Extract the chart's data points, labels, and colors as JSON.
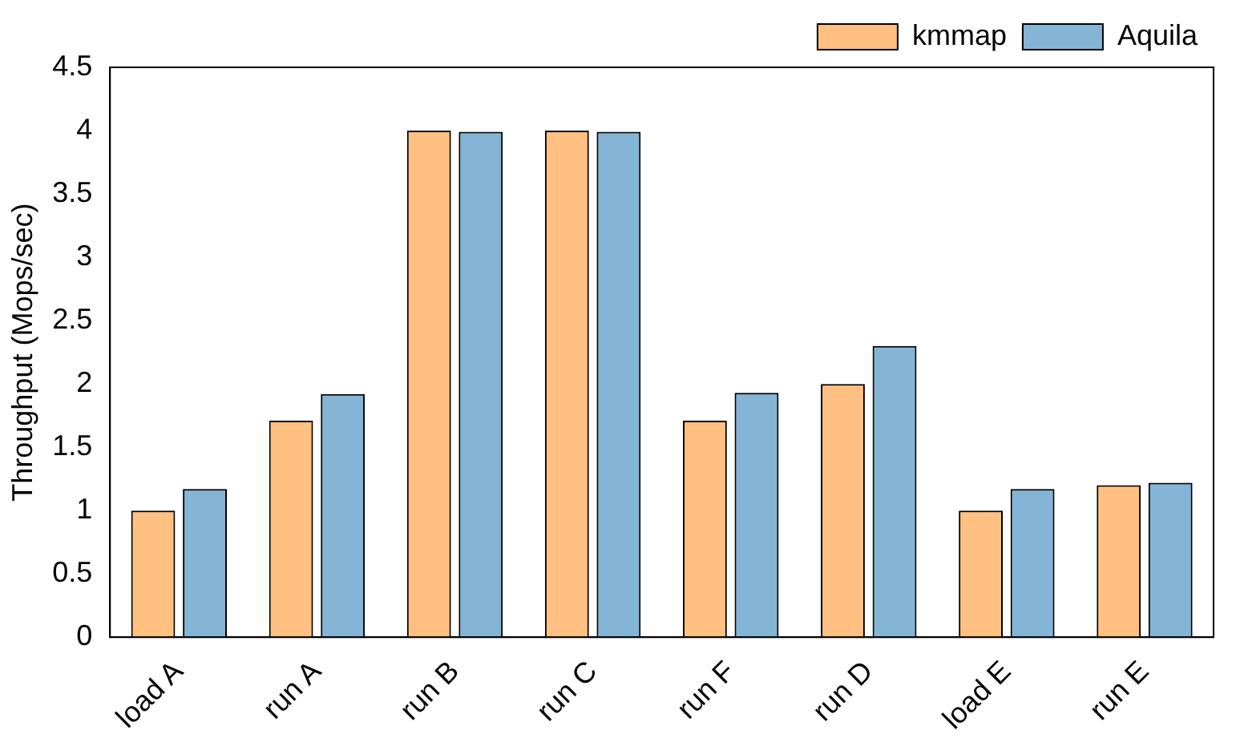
{
  "chart_data": {
    "type": "bar",
    "ylabel": "Throughput (Mops/sec)",
    "categories": [
      "load A",
      "run A",
      "run B",
      "run C",
      "run F",
      "run D",
      "load E",
      "run E"
    ],
    "series": [
      {
        "name": "kmmap",
        "color": "#ff8c1a",
        "values": [
          1.0,
          1.71,
          4.0,
          4.0,
          1.71,
          2.0,
          1.0,
          1.2
        ]
      },
      {
        "name": "Aquila",
        "color": "#1f78b4",
        "values": [
          1.17,
          1.92,
          3.99,
          3.99,
          1.93,
          2.3,
          1.17,
          1.22
        ]
      }
    ],
    "ylim": [
      0,
      4.5
    ],
    "yticks": [
      0,
      0.5,
      1,
      1.5,
      2,
      2.5,
      3,
      3.5,
      4,
      4.5
    ],
    "grid": false,
    "legend": "top right"
  }
}
